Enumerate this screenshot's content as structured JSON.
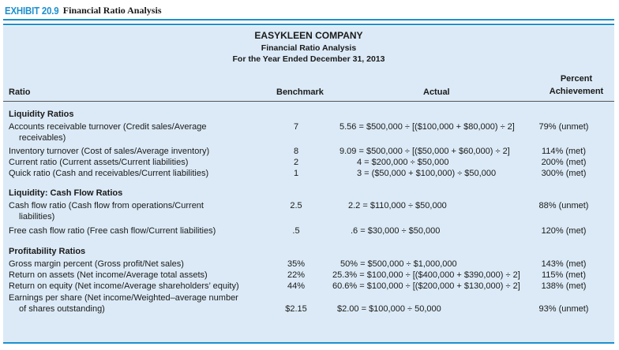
{
  "exhibit": {
    "label": "EXHIBIT 20.9",
    "title": "Financial Ratio Analysis"
  },
  "header": {
    "company": "EASYKLEEN COMPANY",
    "subtitle": "Financial Ratio Analysis",
    "period": "For the Year Ended December 31, 2013"
  },
  "columns": {
    "ratio": "Ratio",
    "benchmark": "Benchmark",
    "actual": "Actual",
    "percent_line1": "Percent",
    "percent_line2": "Achievement"
  },
  "sections": {
    "liquidity": "Liquidity Ratios",
    "cashflow": "Liquidity: Cash Flow Ratios",
    "profitability": "Profitability Ratios"
  },
  "rows": {
    "ar_turnover": {
      "ratio1": "Accounts receivable turnover (Credit sales/Average",
      "ratio2": "receivables)",
      "benchmark": "7",
      "actual": "5.56 = $500,000 ÷ [($100,000 + $80,000) ÷ 2]",
      "percent": "79% (unmet)"
    },
    "inv_turnover": {
      "ratio1": "Inventory turnover (Cost of sales/Average inventory)",
      "benchmark": "8",
      "actual": "9.09 = $500,000 ÷ [($50,000 + $60,000) ÷ 2]",
      "percent": "114% (met)"
    },
    "current_ratio": {
      "ratio1": "Current ratio (Current assets/Current liabilities)",
      "benchmark": "2",
      "actual": "4 = $200,000 ÷ $50,000",
      "percent": "200% (met)"
    },
    "quick_ratio": {
      "ratio1": "Quick ratio (Cash and receivables/Current liabilities)",
      "benchmark": "1",
      "actual": "3 = ($50,000 + $100,000) ÷ $50,000",
      "percent": "300% (met)"
    },
    "cash_flow_ratio": {
      "ratio1": "Cash flow ratio (Cash flow from operations/Current",
      "ratio2": "liabilities)",
      "benchmark": "2.5",
      "actual": "2.2 = $110,000 ÷ $50,000",
      "percent": "88% (unmet)"
    },
    "free_cash_flow": {
      "ratio1": "Free cash flow ratio (Free cash flow/Current liabilities)",
      "benchmark": ".5",
      "actual": ".6 = $30,000 ÷ $50,000",
      "percent": "120% (met)"
    },
    "gross_margin": {
      "ratio1": "Gross margin percent (Gross profit/Net sales)",
      "benchmark": "35%",
      "actual": "50% = $500,000 ÷ $1,000,000",
      "percent": "143% (met)"
    },
    "roa": {
      "ratio1": "Return on assets (Net income/Average total assets)",
      "benchmark": "22%",
      "actual": "25.3% = $100,000 ÷ [($400,000 + $390,000) ÷ 2]",
      "percent": "115% (met)"
    },
    "roe": {
      "ratio1": "Return on equity (Net income/Average shareholders’ equity)",
      "benchmark": "44%",
      "actual": "60.6% = $100,000 ÷ [($200,000 + $130,000) ÷ 2]",
      "percent": "138% (met)"
    },
    "eps": {
      "ratio1": "Earnings per share (Net income/Weighted–average number",
      "ratio2": "of shares outstanding)",
      "benchmark": "$2.15",
      "actual": "$2.00 = $100,000 ÷ 50,000",
      "percent": "93% (unmet)"
    }
  },
  "colors": {
    "accent": "#1d8fcf",
    "panel": "#dbeaf6"
  }
}
